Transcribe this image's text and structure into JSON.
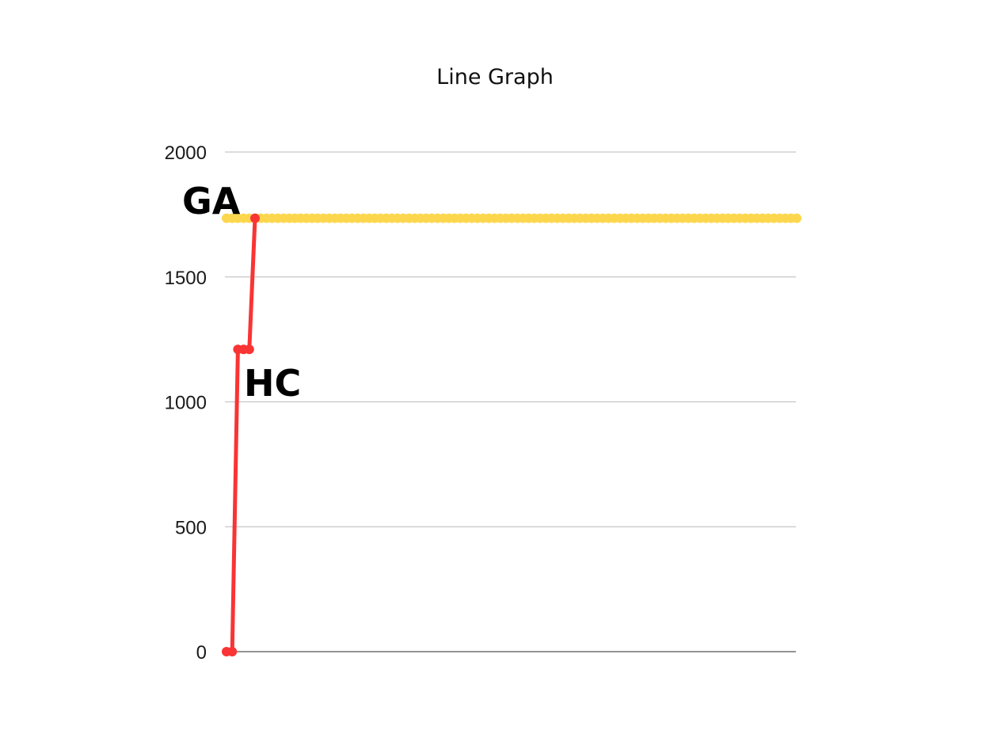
{
  "chart_data": {
    "type": "line",
    "title": "Line Graph",
    "xlabel": "",
    "ylabel": "",
    "ylim": [
      0,
      2000
    ],
    "yticks": [
      0,
      500,
      1000,
      1500,
      2000
    ],
    "ytick_labels": [
      "0",
      "500",
      "1000",
      "1500",
      "2000"
    ],
    "grid": true,
    "legend": "none",
    "series": [
      {
        "name": "GA",
        "color": "#FCD74E",
        "x": [
          0,
          1,
          2,
          3,
          4,
          5,
          6,
          7,
          8,
          9,
          10,
          11,
          12,
          13,
          14,
          15,
          16,
          17,
          18,
          19,
          20,
          21,
          22,
          23,
          24,
          25,
          26,
          27,
          28,
          29,
          30,
          31,
          32,
          33,
          34,
          35,
          36,
          37,
          38,
          39,
          40,
          41,
          42,
          43,
          44,
          45,
          46,
          47,
          48,
          49,
          50,
          51,
          52,
          53,
          54,
          55,
          56,
          57,
          58,
          59,
          60,
          61,
          62,
          63,
          64,
          65,
          66,
          67,
          68,
          69,
          70,
          71,
          72,
          73,
          74,
          75,
          76,
          77,
          78,
          79,
          80,
          81,
          82,
          83,
          84,
          85,
          86,
          87,
          88,
          89,
          90,
          91,
          92,
          93,
          94,
          95,
          96,
          97,
          98,
          99,
          100
        ],
        "y": [
          1735,
          1735,
          1735,
          1735,
          1735,
          1735,
          1735,
          1735,
          1735,
          1735,
          1735,
          1735,
          1735,
          1735,
          1735,
          1735,
          1735,
          1735,
          1735,
          1735,
          1735,
          1735,
          1735,
          1735,
          1735,
          1735,
          1735,
          1735,
          1735,
          1735,
          1735,
          1735,
          1735,
          1735,
          1735,
          1735,
          1735,
          1735,
          1735,
          1735,
          1735,
          1735,
          1735,
          1735,
          1735,
          1735,
          1735,
          1735,
          1735,
          1735,
          1735,
          1735,
          1735,
          1735,
          1735,
          1735,
          1735,
          1735,
          1735,
          1735,
          1735,
          1735,
          1735,
          1735,
          1735,
          1735,
          1735,
          1735,
          1735,
          1735,
          1735,
          1735,
          1735,
          1735,
          1735,
          1735,
          1735,
          1735,
          1735,
          1735,
          1735,
          1735,
          1735,
          1735,
          1735,
          1735,
          1735,
          1735,
          1735,
          1735,
          1735,
          1735,
          1735,
          1735,
          1735,
          1735,
          1735,
          1735,
          1735,
          1735,
          1735
        ]
      },
      {
        "name": "HC",
        "color": "#F93434",
        "x": [
          0,
          1,
          2,
          3,
          4,
          5
        ],
        "y": [
          0,
          0,
          1210,
          1210,
          1210,
          1735
        ]
      }
    ],
    "annotations": [
      "GA",
      "HC"
    ]
  }
}
